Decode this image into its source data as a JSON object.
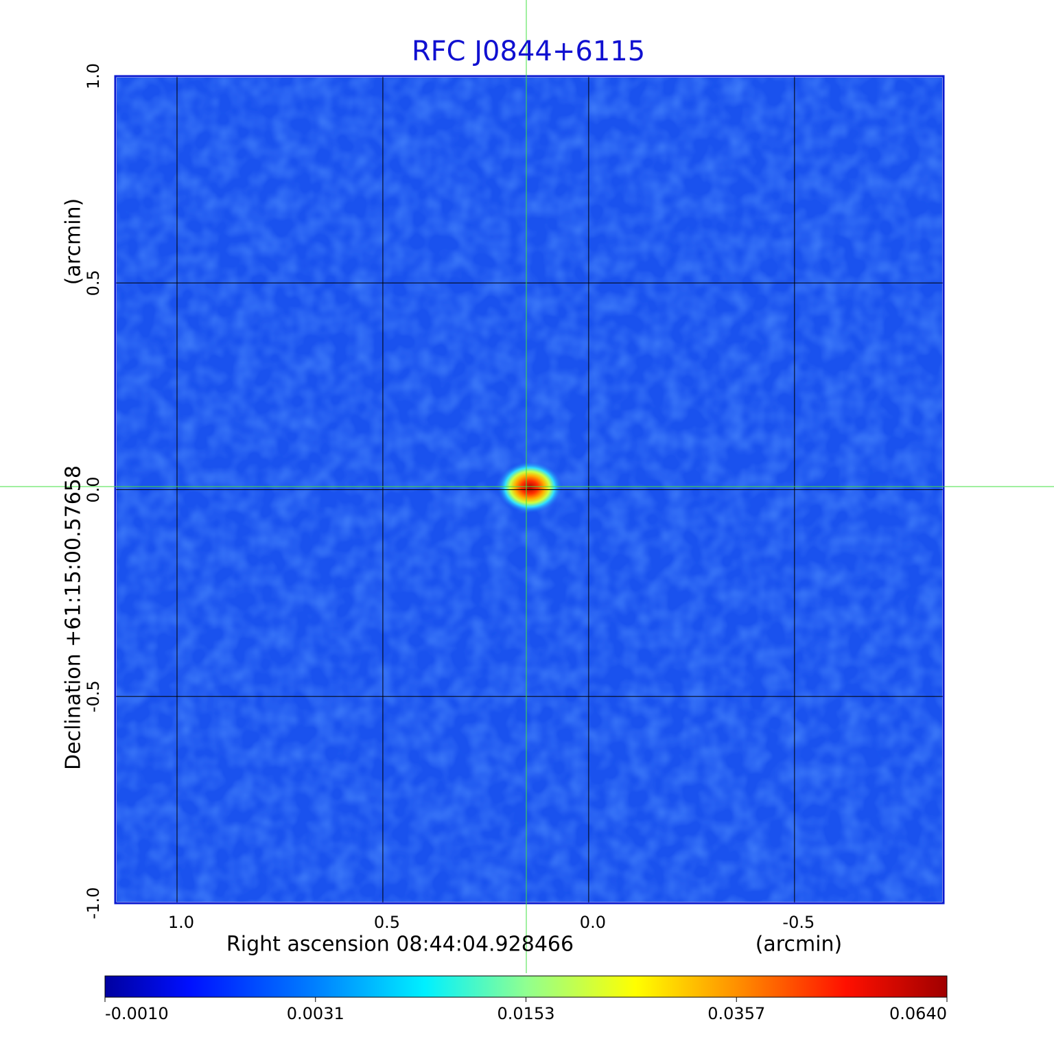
{
  "chart_data": {
    "type": "image",
    "title": "RFC J0844+6115",
    "x_label": "Right ascension  08:44:04.928466",
    "x_unit": "(arcmin)",
    "y_label": "Declination  +61:15:00.57658",
    "y_unit": "(arcmin)",
    "xlim": [
      1.15,
      -0.862
    ],
    "ylim": [
      -1.0,
      1.0
    ],
    "xticks": [
      {
        "value": 1,
        "label": "1.0"
      },
      {
        "value": 0.5,
        "label": "0.5"
      },
      {
        "value": 0,
        "label": "0.0"
      },
      {
        "value": -0.5,
        "label": "-0.5"
      }
    ],
    "yticks": [
      {
        "value": -1,
        "label": "-1.0"
      },
      {
        "value": -0.5,
        "label": "-0.5"
      },
      {
        "value": 0,
        "label": "0.0"
      },
      {
        "value": 0.5,
        "label": "0.5"
      },
      {
        "value": 1,
        "label": "1.0"
      }
    ],
    "grid": true,
    "colorbar_ticks": [
      {
        "value": -0.001,
        "label": "-0.0010"
      },
      {
        "value": 0.0031,
        "label": "0.0031"
      },
      {
        "value": 0.0153,
        "label": "0.0153"
      },
      {
        "value": 0.0357,
        "label": "0.0357"
      },
      {
        "value": 0.064,
        "label": "0.0640"
      }
    ]
  }
}
